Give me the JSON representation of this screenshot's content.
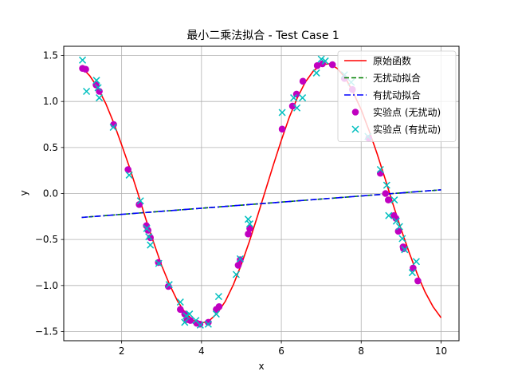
{
  "chart_data": {
    "type": "line",
    "title": "最小二乘法拟合 - Test Case 1",
    "xlabel": "x",
    "ylabel": "y",
    "xlim": [
      0.55,
      10.45
    ],
    "ylim": [
      -1.6,
      1.6
    ],
    "xticks": [
      2,
      4,
      6,
      8,
      10
    ],
    "xtick_labels": [
      "2",
      "4",
      "6",
      "8",
      "10"
    ],
    "yticks": [
      -1.5,
      -1.0,
      -0.5,
      0.0,
      0.5,
      1.0,
      1.5
    ],
    "ytick_labels": [
      "−1.5",
      "−1.0",
      "−0.5",
      "0.0",
      "0.5",
      "1.0",
      "1.5"
    ],
    "grid": true,
    "legend_position": "top-right",
    "series": [
      {
        "name": "原始函数",
        "kind": "line",
        "color": "#ff0000",
        "dash": "solid",
        "function": "sin(x)+0.5*cos(x)... sampled",
        "x": [
          1.0,
          1.2,
          1.4,
          1.6,
          1.8,
          2.0,
          2.2,
          2.4,
          2.6,
          2.8,
          3.0,
          3.2,
          3.4,
          3.6,
          3.8,
          4.0,
          4.2,
          4.4,
          4.6,
          4.8,
          5.0,
          5.2,
          5.4,
          5.6,
          5.8,
          6.0,
          6.2,
          6.4,
          6.6,
          6.8,
          7.0,
          7.2,
          7.4,
          7.6,
          7.8,
          8.0,
          8.2,
          8.4,
          8.6,
          8.8,
          9.0,
          9.2,
          9.4,
          9.6,
          9.8,
          10.0
        ],
        "y": [
          1.37,
          1.28,
          1.15,
          0.98,
          0.77,
          0.53,
          0.28,
          0.01,
          -0.27,
          -0.53,
          -0.78,
          -0.99,
          -1.17,
          -1.3,
          -1.38,
          -1.41,
          -1.38,
          -1.3,
          -1.17,
          -0.99,
          -0.77,
          -0.52,
          -0.25,
          0.03,
          0.31,
          0.58,
          0.83,
          1.04,
          1.21,
          1.33,
          1.4,
          1.41,
          1.36,
          1.26,
          1.1,
          0.91,
          0.68,
          0.43,
          0.16,
          -0.12,
          -0.39,
          -0.64,
          -0.87,
          -1.07,
          -1.23,
          -1.35
        ]
      },
      {
        "name": "无扰动拟合",
        "kind": "line",
        "color": "#008000",
        "dash": "dashed",
        "x": [
          1.0,
          10.0
        ],
        "y": [
          -0.26,
          0.04
        ]
      },
      {
        "name": "有扰动拟合",
        "kind": "line",
        "color": "#0000ff",
        "dash": "dashdot",
        "x": [
          1.0,
          10.0
        ],
        "y": [
          -0.26,
          0.04
        ]
      },
      {
        "name": "实验点 (无扰动)",
        "kind": "scatter",
        "marker": "circle",
        "color": "#c000c0",
        "x": [
          1.02,
          1.1,
          1.36,
          1.44,
          1.8,
          2.16,
          2.44,
          2.62,
          2.66,
          2.72,
          2.92,
          3.17,
          3.47,
          3.58,
          3.64,
          3.72,
          3.88,
          3.96,
          4.17,
          4.37,
          4.44,
          4.92,
          4.97,
          5.17,
          5.21,
          6.02,
          6.28,
          6.38,
          6.54,
          6.9,
          7.03,
          7.28,
          7.58,
          7.78,
          8.19,
          8.48,
          8.61,
          8.68,
          8.82,
          8.87,
          8.93,
          9.05,
          9.06,
          9.3,
          9.42
        ],
        "y": [
          1.36,
          1.35,
          1.18,
          1.11,
          0.75,
          0.26,
          -0.12,
          -0.35,
          -0.4,
          -0.48,
          -0.75,
          -1.01,
          -1.26,
          -1.31,
          -1.37,
          -1.38,
          -1.41,
          -1.42,
          -1.4,
          -1.26,
          -1.23,
          -0.78,
          -0.72,
          -0.44,
          -0.38,
          0.7,
          0.95,
          1.08,
          1.22,
          1.39,
          1.41,
          1.4,
          1.25,
          1.13,
          0.6,
          0.22,
          0.0,
          -0.07,
          -0.24,
          -0.27,
          -0.41,
          -0.58,
          -0.6,
          -0.81,
          -0.95
        ]
      },
      {
        "name": "实验点 (有扰动)",
        "kind": "scatter",
        "marker": "x",
        "color": "#00bfbf",
        "x": [
          1.02,
          1.12,
          1.37,
          1.41,
          1.44,
          1.79,
          2.19,
          2.47,
          2.63,
          2.68,
          2.72,
          2.93,
          3.19,
          3.47,
          3.58,
          3.62,
          3.7,
          3.86,
          3.97,
          4.17,
          4.37,
          4.43,
          4.87,
          4.97,
          5.17,
          5.21,
          6.02,
          6.31,
          6.39,
          6.53,
          6.88,
          7.0,
          7.1,
          7.58,
          7.75,
          8.17,
          8.48,
          8.64,
          8.69,
          8.83,
          8.88,
          8.96,
          9.03,
          9.09,
          9.28,
          9.38
        ],
        "y": [
          1.45,
          1.11,
          1.23,
          1.15,
          1.04,
          0.72,
          0.2,
          -0.08,
          -0.38,
          -0.47,
          -0.56,
          -0.76,
          -0.99,
          -1.18,
          -1.4,
          -1.33,
          -1.31,
          -1.38,
          -1.43,
          -1.42,
          -1.31,
          -1.12,
          -0.88,
          -0.71,
          -0.28,
          -0.33,
          0.88,
          1.04,
          0.93,
          1.04,
          1.31,
          1.46,
          1.44,
          1.29,
          1.21,
          0.62,
          0.26,
          0.09,
          -0.24,
          -0.07,
          -0.3,
          -0.36,
          -0.49,
          -0.61,
          -0.86,
          -0.74
        ]
      }
    ]
  }
}
